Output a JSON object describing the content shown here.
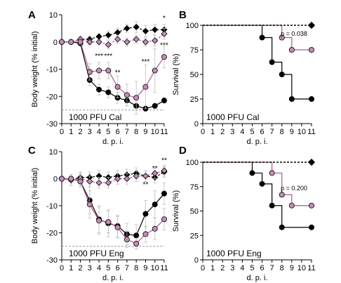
{
  "colors": {
    "pink": "#c48bb6",
    "pink_line": "#a85a94",
    "black": "#000000",
    "dashed": "#999999"
  },
  "shared": {
    "xlabel": "d. p. i.",
    "x_ticks": [
      0,
      1,
      2,
      3,
      4,
      5,
      6,
      7,
      8,
      9,
      10,
      11
    ]
  },
  "chart_data": [
    {
      "panel": "A",
      "type": "line",
      "annotation": "1000 PFU Cal",
      "xlabel": "d. p. i.",
      "ylabel": "Body weight (% initial)",
      "xlim": [
        0,
        11
      ],
      "ylim": [
        -30,
        10
      ],
      "y_ticks": [
        10,
        0,
        -10,
        -20,
        -30
      ],
      "threshold": -25,
      "x": [
        0,
        1,
        2,
        3,
        4,
        5,
        6,
        7,
        8,
        9,
        10,
        11
      ],
      "series": [
        {
          "marker": "circle",
          "color": "black",
          "line": "solid",
          "values": [
            0,
            0,
            -0.5,
            -14,
            -17.5,
            -18.5,
            -20.5,
            -21.5,
            -23.5,
            -24.5,
            -23.5,
            -21.5
          ],
          "errors": [
            0,
            0.3,
            1,
            2,
            2,
            2,
            2,
            2,
            1.5,
            1,
            1,
            1
          ]
        },
        {
          "marker": "circle",
          "color": "pink",
          "line": "solid",
          "values": [
            0,
            0,
            0,
            -11,
            -10.5,
            -10.5,
            -16.5,
            -19.5,
            -20.5,
            -16.5,
            -10.5,
            -5.5
          ],
          "errors": [
            0,
            0.3,
            1,
            3,
            3,
            3,
            4,
            4,
            6,
            8,
            8,
            4
          ]
        },
        {
          "marker": "diamond",
          "color": "black",
          "line": "dashed",
          "values": [
            0,
            0,
            1,
            1,
            2,
            2.5,
            3.5,
            5,
            5.5,
            4,
            4.5,
            4.5
          ],
          "errors": [
            0,
            0.3,
            1,
            1,
            1,
            1.5,
            1.5,
            1.5,
            2,
            2,
            2,
            2
          ]
        },
        {
          "marker": "diamond",
          "color": "pink",
          "line": "dashed",
          "values": [
            0,
            0,
            1,
            0,
            0,
            -1,
            1,
            0,
            1,
            0,
            0.5,
            3
          ],
          "errors": [
            0,
            0.3,
            1,
            1,
            1,
            1.5,
            1.5,
            1.5,
            1.5,
            1.5,
            2,
            2
          ]
        }
      ],
      "significance": [
        {
          "x": 4,
          "label": "***",
          "y": -6
        },
        {
          "x": 5,
          "label": "***",
          "y": -6
        },
        {
          "x": 6,
          "label": "**",
          "y": -12
        },
        {
          "x": 9,
          "label": "***",
          "y": -8
        },
        {
          "x": 11,
          "label": "***",
          "y": -2
        },
        {
          "x": 11,
          "label": "*",
          "y": 8
        }
      ]
    },
    {
      "panel": "B",
      "type": "line",
      "annotation": "1000 PFU Cal",
      "xlabel": "d. p. i.",
      "ylabel": "Survival (%)",
      "xlim": [
        0,
        11
      ],
      "ylim": [
        0,
        100
      ],
      "y_ticks": [
        0,
        25,
        50,
        75,
        100
      ],
      "pvalue": "p = 0.038",
      "series": [
        {
          "color": "black",
          "marker": "circle",
          "steps": [
            [
              0,
              100
            ],
            [
              6,
              100
            ],
            [
              6,
              87.5
            ],
            [
              7,
              87.5
            ],
            [
              7,
              62.5
            ],
            [
              8,
              62.5
            ],
            [
              8,
              50
            ],
            [
              9,
              50
            ],
            [
              9,
              25
            ],
            [
              11,
              25
            ]
          ],
          "points": [
            [
              6,
              87.5
            ],
            [
              7,
              62.5
            ],
            [
              8,
              50
            ],
            [
              9,
              25
            ],
            [
              11,
              25
            ]
          ]
        },
        {
          "color": "pink",
          "marker": "circle",
          "steps": [
            [
              0,
              100
            ],
            [
              8,
              100
            ],
            [
              8,
              87.5
            ],
            [
              9,
              87.5
            ],
            [
              9,
              75
            ],
            [
              11,
              75
            ]
          ],
          "points": [
            [
              8,
              87.5
            ],
            [
              9,
              75
            ],
            [
              11,
              75
            ]
          ]
        },
        {
          "color": "black",
          "marker": "diamond",
          "dashed": true,
          "steps": [
            [
              0,
              100
            ],
            [
              11,
              100
            ]
          ],
          "points": [
            [
              11,
              100
            ]
          ]
        }
      ]
    },
    {
      "panel": "C",
      "type": "line",
      "annotation": "1000 PFU Eng",
      "xlabel": "d. p. i.",
      "ylabel": "Body weight (% initial)",
      "xlim": [
        0,
        11
      ],
      "ylim": [
        -30,
        10
      ],
      "y_ticks": [
        10,
        0,
        -10,
        -20,
        -30
      ],
      "threshold": -25,
      "x": [
        0,
        1,
        2,
        3,
        4,
        5,
        6,
        7,
        8,
        9,
        10,
        11
      ],
      "series": [
        {
          "marker": "circle",
          "color": "black",
          "line": "solid",
          "values": [
            0,
            0,
            -1,
            -8,
            -15,
            -16.5,
            -17.5,
            -20.5,
            -21,
            -13,
            -9.5,
            -5.5
          ],
          "errors": [
            0,
            0.5,
            2,
            5,
            5,
            5,
            4,
            4,
            4,
            5,
            5,
            4
          ]
        },
        {
          "marker": "circle",
          "color": "pink",
          "line": "solid",
          "values": [
            0,
            0,
            -1,
            -9.5,
            -15.5,
            -16,
            -18,
            -22.5,
            -24,
            -20.5,
            -18.5,
            -15
          ],
          "errors": [
            0,
            0.5,
            2,
            5,
            5,
            4,
            4,
            3,
            2,
            3,
            4,
            4
          ]
        },
        {
          "marker": "diamond",
          "color": "black",
          "line": "dashed",
          "values": [
            0,
            -0.5,
            0.5,
            0.5,
            1,
            0.5,
            1,
            1.5,
            2,
            1,
            0.5,
            2.5
          ],
          "errors": [
            0,
            2,
            2,
            2,
            2,
            2,
            2,
            2,
            2,
            2,
            2,
            2
          ]
        },
        {
          "marker": "diamond",
          "color": "pink",
          "line": "dashed",
          "values": [
            0,
            -0.5,
            0,
            -1,
            -1.5,
            -1.5,
            0,
            0,
            1,
            1,
            2,
            3
          ],
          "errors": [
            0,
            2,
            2,
            2,
            2,
            2,
            2,
            2,
            2,
            2,
            2,
            2
          ]
        }
      ],
      "significance": [
        {
          "x": 9,
          "label": "**",
          "y": -3
        },
        {
          "x": 10,
          "label": "**",
          "y": 3
        },
        {
          "x": 11,
          "label": "**",
          "y": 6
        }
      ]
    },
    {
      "panel": "D",
      "type": "line",
      "annotation": "1000 PFU Eng",
      "xlabel": "d. p. i.",
      "ylabel": "Survival (%)",
      "xlim": [
        0,
        11
      ],
      "ylim": [
        0,
        100
      ],
      "y_ticks": [
        0,
        25,
        50,
        75,
        100
      ],
      "pvalue": "p = 0.200",
      "series": [
        {
          "color": "black",
          "marker": "circle",
          "steps": [
            [
              0,
              100
            ],
            [
              5,
              100
            ],
            [
              5,
              88.9
            ],
            [
              6,
              88.9
            ],
            [
              6,
              77.8
            ],
            [
              7,
              77.8
            ],
            [
              7,
              55.6
            ],
            [
              8,
              55.6
            ],
            [
              8,
              33.3
            ],
            [
              11,
              33.3
            ]
          ],
          "points": [
            [
              5,
              88.9
            ],
            [
              6,
              77.8
            ],
            [
              7,
              55.6
            ],
            [
              8,
              33.3
            ],
            [
              11,
              33.3
            ]
          ]
        },
        {
          "color": "pink",
          "marker": "circle",
          "steps": [
            [
              0,
              100
            ],
            [
              7,
              100
            ],
            [
              7,
              88.9
            ],
            [
              8,
              88.9
            ],
            [
              8,
              66.7
            ],
            [
              9,
              66.7
            ],
            [
              9,
              55.6
            ],
            [
              11,
              55.6
            ]
          ],
          "points": [
            [
              7,
              88.9
            ],
            [
              8,
              66.7
            ],
            [
              9,
              55.6
            ],
            [
              11,
              55.6
            ]
          ]
        },
        {
          "color": "black",
          "marker": "diamond",
          "dashed": true,
          "steps": [
            [
              0,
              100
            ],
            [
              11,
              100
            ]
          ],
          "points": [
            [
              11,
              100
            ]
          ]
        }
      ]
    }
  ]
}
